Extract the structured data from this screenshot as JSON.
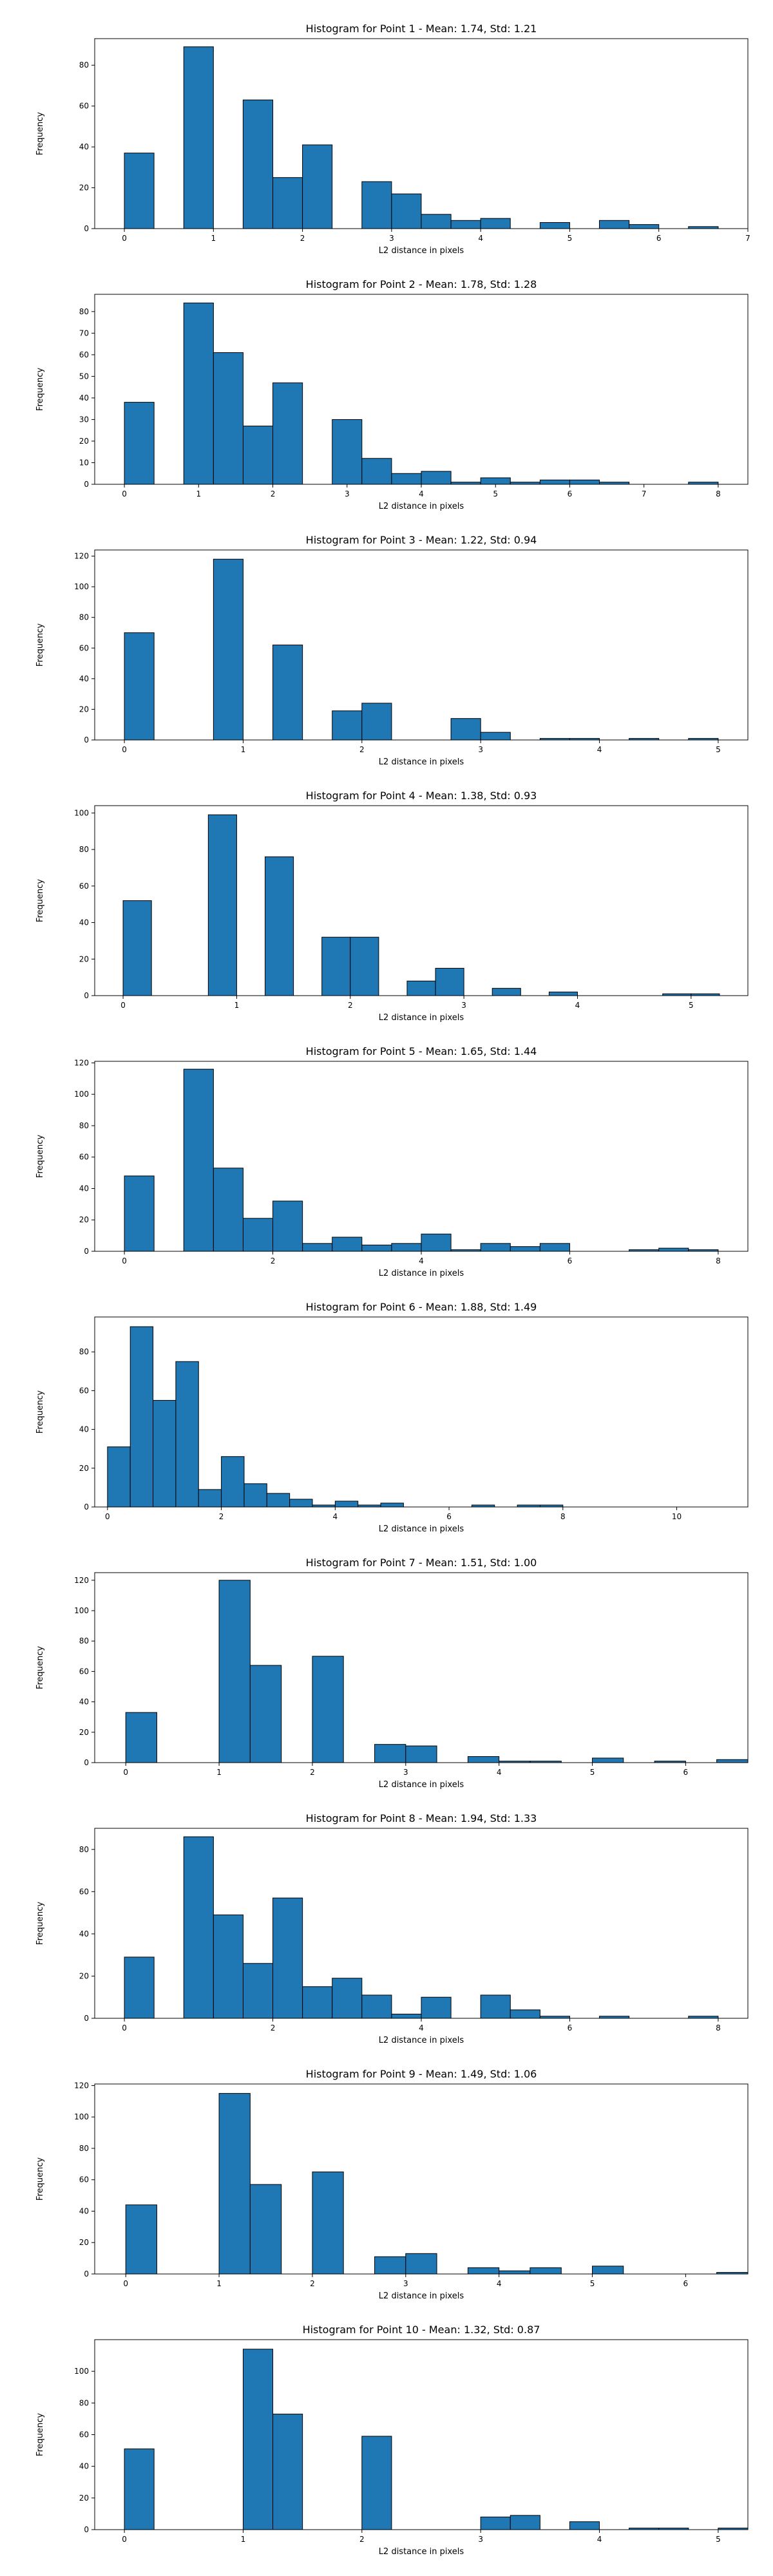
{
  "chart_data": [
    {
      "type": "bar",
      "title": "Histogram for Point 1 - Mean: 1.74, Std: 1.21",
      "xlabel": "L2 distance in pixels",
      "ylabel": "Frequency",
      "bins": [
        [
          0,
          0.333,
          37
        ],
        [
          0.667,
          1,
          89
        ],
        [
          1.333,
          1.667,
          63
        ],
        [
          1.667,
          2,
          25
        ],
        [
          2,
          2.333,
          41
        ],
        [
          2.667,
          3,
          23
        ],
        [
          3,
          3.333,
          17
        ],
        [
          3.333,
          3.667,
          7
        ],
        [
          3.667,
          4,
          4
        ],
        [
          4,
          4.333,
          5
        ],
        [
          4.667,
          5,
          3
        ],
        [
          5.333,
          5.667,
          4
        ],
        [
          5.667,
          6,
          2
        ],
        [
          6.333,
          6.667,
          1
        ]
      ],
      "xticks": [
        0,
        1,
        2,
        3,
        4,
        5,
        6,
        7
      ],
      "yticks": [
        0,
        20,
        40,
        60,
        80
      ],
      "xlim": [
        -0.333,
        7
      ],
      "ylim": [
        0,
        93
      ]
    },
    {
      "type": "bar",
      "title": "Histogram for Point 2 - Mean: 1.78, Std: 1.28",
      "xlabel": "L2 distance in pixels",
      "ylabel": "Frequency",
      "bins": [
        [
          0,
          0.4,
          38
        ],
        [
          0.8,
          1.2,
          84
        ],
        [
          1.2,
          1.6,
          61
        ],
        [
          1.6,
          2,
          27
        ],
        [
          2,
          2.4,
          47
        ],
        [
          2.8,
          3.2,
          30
        ],
        [
          3.2,
          3.6,
          12
        ],
        [
          3.6,
          4,
          5
        ],
        [
          4,
          4.4,
          6
        ],
        [
          4.4,
          4.8,
          1
        ],
        [
          4.8,
          5.2,
          3
        ],
        [
          5.2,
          5.6,
          1
        ],
        [
          5.6,
          6,
          2
        ],
        [
          6,
          6.4,
          2
        ],
        [
          6.4,
          6.8,
          1
        ],
        [
          7.6,
          8,
          1
        ]
      ],
      "xticks": [
        0,
        1,
        2,
        3,
        4,
        5,
        6,
        7,
        8
      ],
      "yticks": [
        0,
        10,
        20,
        30,
        40,
        50,
        60,
        70,
        80
      ],
      "xlim": [
        -0.4,
        8.4
      ],
      "ylim": [
        0,
        88
      ]
    },
    {
      "type": "bar",
      "title": "Histogram for Point 3 - Mean: 1.22, Std: 0.94",
      "xlabel": "L2 distance in pixels",
      "ylabel": "Frequency",
      "bins": [
        [
          0,
          0.25,
          70
        ],
        [
          0.75,
          1,
          118
        ],
        [
          1.25,
          1.5,
          62
        ],
        [
          1.75,
          2,
          19
        ],
        [
          2,
          2.25,
          24
        ],
        [
          2.75,
          3,
          14
        ],
        [
          3,
          3.25,
          5
        ],
        [
          3.5,
          3.75,
          1
        ],
        [
          3.75,
          4,
          1
        ],
        [
          4.25,
          4.5,
          1
        ],
        [
          4.75,
          5,
          1
        ]
      ],
      "xticks": [
        0,
        1,
        2,
        3,
        4,
        5
      ],
      "yticks": [
        0,
        20,
        40,
        60,
        80,
        100,
        120
      ],
      "xlim": [
        -0.25,
        5.25
      ],
      "ylim": [
        0,
        124
      ]
    },
    {
      "type": "bar",
      "title": "Histogram for Point 4 - Mean: 1.38, Std: 0.93",
      "xlabel": "L2 distance in pixels",
      "ylabel": "Frequency",
      "bins": [
        [
          0,
          0.25,
          52
        ],
        [
          0.75,
          1,
          99
        ],
        [
          1.25,
          1.5,
          76
        ],
        [
          1.75,
          2,
          32
        ],
        [
          2,
          2.25,
          32
        ],
        [
          2.5,
          2.75,
          8
        ],
        [
          2.75,
          3,
          15
        ],
        [
          3.25,
          3.5,
          4
        ],
        [
          3.75,
          4,
          2
        ],
        [
          4.75,
          5,
          1
        ],
        [
          5,
          5.25,
          1
        ]
      ],
      "xticks": [
        0,
        1,
        2,
        3,
        4,
        5
      ],
      "yticks": [
        0,
        20,
        40,
        60,
        80,
        100
      ],
      "xlim": [
        -0.25,
        5.5
      ],
      "ylim": [
        0,
        104
      ]
    },
    {
      "type": "bar",
      "title": "Histogram for Point 5 - Mean: 1.65, Std: 1.44",
      "xlabel": "L2 distance in pixels",
      "ylabel": "Frequency",
      "bins": [
        [
          0,
          0.4,
          48
        ],
        [
          0.8,
          1.2,
          116
        ],
        [
          1.2,
          1.6,
          53
        ],
        [
          1.6,
          2,
          21
        ],
        [
          2,
          2.4,
          32
        ],
        [
          2.4,
          2.8,
          5
        ],
        [
          2.8,
          3.2,
          9
        ],
        [
          3.2,
          3.6,
          4
        ],
        [
          3.6,
          4,
          5
        ],
        [
          4,
          4.4,
          11
        ],
        [
          4.4,
          4.8,
          1
        ],
        [
          4.8,
          5.2,
          5
        ],
        [
          5.2,
          5.6,
          3
        ],
        [
          5.6,
          6,
          5
        ],
        [
          6.8,
          7.2,
          1
        ],
        [
          7.2,
          7.6,
          2
        ],
        [
          7.6,
          8,
          1
        ]
      ],
      "xticks": [
        0,
        2,
        4,
        6,
        8
      ],
      "yticks": [
        0,
        20,
        40,
        60,
        80,
        100,
        120
      ],
      "xlim": [
        -0.4,
        8.4
      ],
      "ylim": [
        0,
        121
      ]
    },
    {
      "type": "bar",
      "title": "Histogram for Point 6 - Mean: 1.88, Std: 1.49",
      "xlabel": "L2 distance in pixels",
      "ylabel": "Frequency",
      "bins": [
        [
          0,
          0.4,
          31
        ],
        [
          0.4,
          0.8,
          93
        ],
        [
          0.8,
          1.2,
          55
        ],
        [
          1.2,
          1.6,
          75
        ],
        [
          1.6,
          2,
          9
        ],
        [
          2,
          2.4,
          26
        ],
        [
          2.4,
          2.8,
          12
        ],
        [
          2.8,
          3.2,
          7
        ],
        [
          3.2,
          3.6,
          4
        ],
        [
          3.6,
          4,
          1
        ],
        [
          4,
          4.4,
          3
        ],
        [
          4.4,
          4.8,
          1
        ],
        [
          4.8,
          5.2,
          2
        ],
        [
          6.4,
          6.8,
          1
        ],
        [
          7.2,
          7.6,
          1
        ],
        [
          7.6,
          8,
          1
        ]
      ],
      "xticks": [
        0,
        2,
        4,
        6,
        8,
        10
      ],
      "yticks": [
        0,
        20,
        40,
        60,
        80
      ],
      "xlim": [
        -0.225,
        11.25
      ],
      "ylim": [
        0,
        98
      ]
    },
    {
      "type": "bar",
      "title": "Histogram for Point 7 - Mean: 1.51, Std: 1.00",
      "xlabel": "L2 distance in pixels",
      "ylabel": "Frequency",
      "bins": [
        [
          0,
          0.333,
          33
        ],
        [
          1,
          1.333,
          120
        ],
        [
          1.333,
          1.667,
          64
        ],
        [
          2,
          2.333,
          70
        ],
        [
          2.667,
          3,
          12
        ],
        [
          3,
          3.333,
          11
        ],
        [
          3.667,
          4,
          4
        ],
        [
          4,
          4.333,
          1
        ],
        [
          4.333,
          4.667,
          1
        ],
        [
          5,
          5.333,
          3
        ],
        [
          5.667,
          6,
          1
        ],
        [
          6.333,
          6.667,
          2
        ]
      ],
      "xticks": [
        0,
        1,
        2,
        3,
        4,
        5,
        6
      ],
      "yticks": [
        0,
        20,
        40,
        60,
        80,
        100,
        120
      ],
      "xlim": [
        -0.333,
        6.667
      ],
      "ylim": [
        0,
        125
      ]
    },
    {
      "type": "bar",
      "title": "Histogram for Point 8 - Mean: 1.94, Std: 1.33",
      "xlabel": "L2 distance in pixels",
      "ylabel": "Frequency",
      "bins": [
        [
          0,
          0.4,
          29
        ],
        [
          0.8,
          1.2,
          86
        ],
        [
          1.2,
          1.6,
          49
        ],
        [
          1.6,
          2,
          26
        ],
        [
          2,
          2.4,
          57
        ],
        [
          2.4,
          2.8,
          15
        ],
        [
          2.8,
          3.2,
          19
        ],
        [
          3.2,
          3.6,
          11
        ],
        [
          3.6,
          4,
          2
        ],
        [
          4,
          4.4,
          10
        ],
        [
          4.8,
          5.2,
          11
        ],
        [
          5.2,
          5.6,
          4
        ],
        [
          5.6,
          6,
          1
        ],
        [
          6.4,
          6.8,
          1
        ],
        [
          7.6,
          8,
          1
        ]
      ],
      "xticks": [
        0,
        2,
        4,
        6,
        8
      ],
      "yticks": [
        0,
        20,
        40,
        60,
        80
      ],
      "xlim": [
        -0.4,
        8.4
      ],
      "ylim": [
        0,
        90
      ]
    },
    {
      "type": "bar",
      "title": "Histogram for Point 9 - Mean: 1.49, Std: 1.06",
      "xlabel": "L2 distance in pixels",
      "ylabel": "Frequency",
      "bins": [
        [
          0,
          0.333,
          44
        ],
        [
          1,
          1.333,
          115
        ],
        [
          1.333,
          1.667,
          57
        ],
        [
          2,
          2.333,
          65
        ],
        [
          2.667,
          3,
          11
        ],
        [
          3,
          3.333,
          13
        ],
        [
          3.667,
          4,
          4
        ],
        [
          4,
          4.333,
          2
        ],
        [
          4.333,
          4.667,
          4
        ],
        [
          5,
          5.333,
          5
        ],
        [
          6.333,
          6.667,
          1
        ]
      ],
      "xticks": [
        0,
        1,
        2,
        3,
        4,
        5,
        6
      ],
      "yticks": [
        0,
        20,
        40,
        60,
        80,
        100,
        120
      ],
      "xlim": [
        -0.333,
        6.667
      ],
      "ylim": [
        0,
        121
      ]
    },
    {
      "type": "bar",
      "title": "Histogram for Point 10 - Mean: 1.32, Std: 0.87",
      "xlabel": "L2 distance in pixels",
      "ylabel": "Frequency",
      "bins": [
        [
          0,
          0.25,
          51
        ],
        [
          1,
          1.25,
          114
        ],
        [
          1.25,
          1.5,
          73
        ],
        [
          2,
          2.25,
          59
        ],
        [
          3,
          3.25,
          8
        ],
        [
          3.25,
          3.5,
          9
        ],
        [
          3.75,
          4,
          5
        ],
        [
          4.25,
          4.5,
          1
        ],
        [
          4.5,
          4.75,
          1
        ],
        [
          5,
          5.25,
          1
        ]
      ],
      "xticks": [
        0,
        1,
        2,
        3,
        4,
        5
      ],
      "yticks": [
        0,
        20,
        40,
        60,
        80,
        100
      ],
      "xlim": [
        -0.25,
        5.25
      ],
      "ylim": [
        0,
        120
      ]
    }
  ]
}
